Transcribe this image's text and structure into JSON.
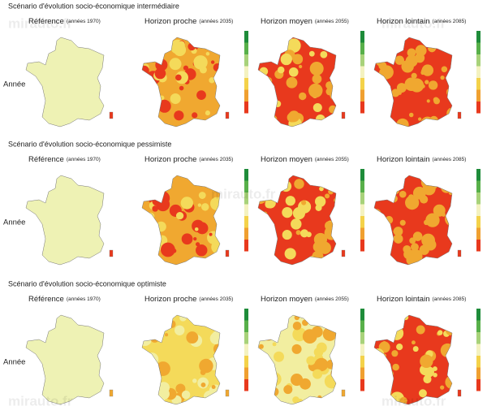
{
  "watermark": "mirauto.fr",
  "row_label": "Année",
  "columns": [
    {
      "label": "Référence",
      "period": "(années 1970)"
    },
    {
      "label": "Horizon proche",
      "period": "(années 2035)"
    },
    {
      "label": "Horizon moyen",
      "period": "(années 2055)"
    },
    {
      "label": "Horizon lointain",
      "period": "(années 2085)"
    }
  ],
  "scenarios": [
    {
      "title": "Scénario d'évolution socio-économique intermédiaire"
    },
    {
      "title": "Scénario d'évolution socio-économique pessimiste"
    },
    {
      "title": "Scénario d'évolution socio-économique optimiste"
    }
  ]
}
